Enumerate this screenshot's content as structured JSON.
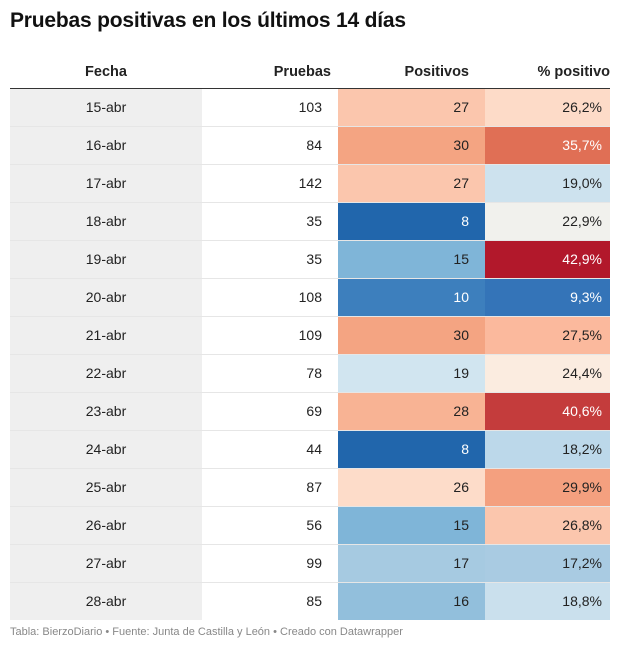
{
  "title": "Pruebas positivas en los últimos 14 días",
  "footer": "Tabla: BierzoDiario • Fuente: Junta de Castilla y León • Creado con Datawrapper",
  "chart_data": {
    "type": "table",
    "title": "Pruebas positivas en los últimos 14 días",
    "columns": [
      "Fecha",
      "Pruebas",
      "Positivos",
      "% positivo"
    ],
    "rows": [
      {
        "fecha": "15-abr",
        "pruebas": 103,
        "positivos": 27,
        "pct": "26,2%",
        "pos_color": "#fbc6ad",
        "pos_text": "#222222",
        "pct_color": "#fddbc8",
        "pct_text": "#222222"
      },
      {
        "fecha": "16-abr",
        "pruebas": 84,
        "positivos": 30,
        "pct": "35,7%",
        "pos_color": "#f4a482",
        "pos_text": "#222222",
        "pct_color": "#e06f55",
        "pct_text": "#ffffff"
      },
      {
        "fecha": "17-abr",
        "pruebas": 142,
        "positivos": 27,
        "pct": "19,0%",
        "pos_color": "#fbc6ad",
        "pos_text": "#222222",
        "pct_color": "#cde2ee",
        "pct_text": "#222222"
      },
      {
        "fecha": "18-abr",
        "pruebas": 35,
        "positivos": 8,
        "pct": "22,9%",
        "pos_color": "#2166ac",
        "pos_text": "#ffffff",
        "pct_color": "#f1f1ed",
        "pct_text": "#222222"
      },
      {
        "fecha": "19-abr",
        "pruebas": 35,
        "positivos": 15,
        "pct": "42,9%",
        "pos_color": "#7fb5d8",
        "pos_text": "#222222",
        "pct_color": "#b2182b",
        "pct_text": "#ffffff"
      },
      {
        "fecha": "20-abr",
        "pruebas": 108,
        "positivos": 10,
        "pct": "9,3%",
        "pos_color": "#3d7fbd",
        "pos_text": "#ffffff",
        "pct_color": "#3474b8",
        "pct_text": "#ffffff"
      },
      {
        "fecha": "21-abr",
        "pruebas": 109,
        "positivos": 30,
        "pct": "27,5%",
        "pos_color": "#f4a482",
        "pos_text": "#222222",
        "pct_color": "#fbb99d",
        "pct_text": "#222222"
      },
      {
        "fecha": "22-abr",
        "pruebas": 78,
        "positivos": 19,
        "pct": "24,4%",
        "pos_color": "#d1e5f0",
        "pos_text": "#222222",
        "pct_color": "#fbece0",
        "pct_text": "#222222"
      },
      {
        "fecha": "23-abr",
        "pruebas": 69,
        "positivos": 28,
        "pct": "40,6%",
        "pos_color": "#f8b394",
        "pos_text": "#222222",
        "pct_color": "#c43c3c",
        "pct_text": "#ffffff"
      },
      {
        "fecha": "24-abr",
        "pruebas": 44,
        "positivos": 8,
        "pct": "18,2%",
        "pos_color": "#2166ac",
        "pos_text": "#ffffff",
        "pct_color": "#bcd8ea",
        "pct_text": "#222222"
      },
      {
        "fecha": "25-abr",
        "pruebas": 87,
        "positivos": 26,
        "pct": "29,9%",
        "pos_color": "#fddcc9",
        "pos_text": "#222222",
        "pct_color": "#f4a07f",
        "pct_text": "#222222"
      },
      {
        "fecha": "26-abr",
        "pruebas": 56,
        "positivos": 15,
        "pct": "26,8%",
        "pos_color": "#7fb5d8",
        "pos_text": "#222222",
        "pct_color": "#fbc6ad",
        "pct_text": "#222222"
      },
      {
        "fecha": "27-abr",
        "pruebas": 99,
        "positivos": 17,
        "pct": "17,2%",
        "pos_color": "#a6cae1",
        "pos_text": "#222222",
        "pct_color": "#a9cbe2",
        "pct_text": "#222222"
      },
      {
        "fecha": "28-abr",
        "pruebas": 85,
        "positivos": 16,
        "pct": "18,8%",
        "pos_color": "#92bfdc",
        "pos_text": "#222222",
        "pct_color": "#cae0ed",
        "pct_text": "#222222"
      }
    ]
  }
}
